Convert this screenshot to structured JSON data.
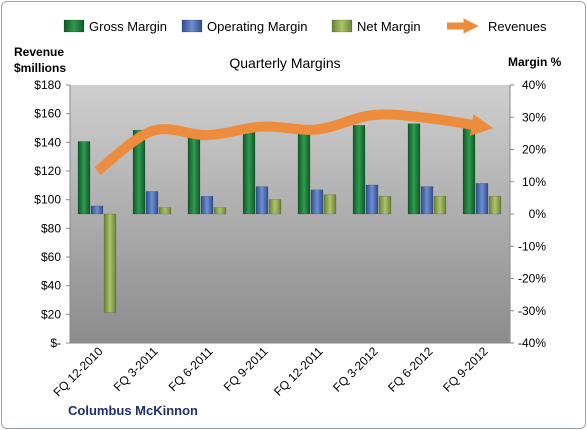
{
  "chart_data": {
    "type": "bar",
    "title": "Quarterly Margins",
    "company": "Columbus McKinnon",
    "left_axis_label_lines": [
      "Revenue",
      "$millions"
    ],
    "right_axis_label": "Margin %",
    "categories": [
      "FQ 12-2010",
      "FQ 3-2011",
      "FQ 6-2011",
      "FQ 9-2011",
      "FQ 12-2011",
      "FQ 3-2012",
      "FQ 6-2012",
      "FQ 9-2012"
    ],
    "left_ticks": [
      "$180",
      "$160",
      "$140",
      "$120",
      "$100",
      "$80",
      "$60",
      "$40",
      "$20",
      "$-"
    ],
    "right_ticks": [
      "40%",
      "30%",
      "20%",
      "10%",
      "0%",
      "-10%",
      "-20%",
      "-30%",
      "-40%"
    ],
    "left_ylim": [
      0,
      180
    ],
    "right_ylim": [
      -40,
      40
    ],
    "series": [
      {
        "name": "Gross Margin",
        "axis": "right",
        "color": "#1f7a3a",
        "values": [
          22.5,
          26,
          25.5,
          26,
          26.5,
          27.5,
          28,
          29
        ]
      },
      {
        "name": "Operating Margin",
        "axis": "right",
        "color": "#4a6fb5",
        "values": [
          2.5,
          7,
          5.5,
          8.5,
          7.5,
          9,
          8.5,
          9.5
        ]
      },
      {
        "name": "Net Margin",
        "axis": "right",
        "color": "#8fa84e",
        "values": [
          -30.5,
          2,
          2,
          4.5,
          6,
          5.5,
          5.5,
          5.5
        ]
      },
      {
        "name": "Revenues",
        "axis": "left",
        "type": "line",
        "color": "#ec8c3c",
        "values": [
          120,
          148,
          145,
          151,
          149,
          159,
          157,
          151
        ]
      }
    ],
    "grid": false,
    "legend_position": "top"
  }
}
